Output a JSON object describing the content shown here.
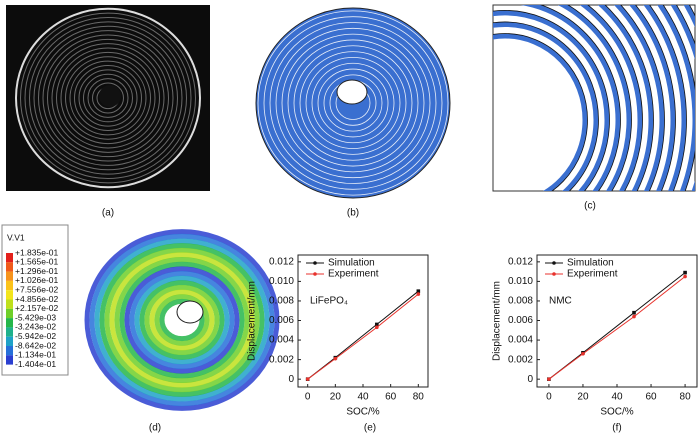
{
  "panels": [
    "(a)",
    "(b)",
    "(c)",
    "(d)",
    "(e)",
    "(f)"
  ],
  "colorbar": {
    "title": "V.V1",
    "labels": [
      "+1.835e-01",
      "+1.565e-01",
      "+1.296e-01",
      "+1.026e-01",
      "+7.556e-02",
      "+4.856e-02",
      "+2.157e-02",
      "-5.429e-03",
      "-3.243e-02",
      "-5.942e-02",
      "-8.642e-02",
      "-1.134e-01",
      "-1.404e-01"
    ]
  },
  "chart_data": [
    {
      "type": "line",
      "annotation": "LiFePO₄",
      "xlabel": "SOC/%",
      "ylabel": "Displacement/mm",
      "x": [
        0,
        20,
        50,
        80
      ],
      "series": [
        {
          "name": "Simulation",
          "color": "#111111",
          "values": [
            0,
            0.0022,
            0.0056,
            0.009
          ]
        },
        {
          "name": "Experiment",
          "color": "#e8322c",
          "values": [
            0,
            0.0021,
            0.0053,
            0.0087
          ]
        }
      ],
      "xlim": [
        -7,
        87
      ],
      "xticks": [
        0,
        20,
        40,
        60,
        80
      ],
      "ylim": [
        -0.0008,
        0.0127
      ],
      "yticks": [
        0,
        0.002,
        0.004,
        0.006,
        0.008,
        {
          "value": 0.01,
          "label": "0.010"
        },
        0.012
      ],
      "legend": "upper left"
    },
    {
      "type": "line",
      "annotation": "NMC",
      "xlabel": "SOC/%",
      "ylabel": "Displacement/mm",
      "x": [
        0,
        20,
        50,
        80
      ],
      "series": [
        {
          "name": "Simulation",
          "color": "#111111",
          "values": [
            0,
            0.0027,
            0.0068,
            0.0109
          ]
        },
        {
          "name": "Experiment",
          "color": "#e8322c",
          "values": [
            0,
            0.0026,
            0.0064,
            0.0105
          ]
        }
      ],
      "xlim": [
        -7,
        87
      ],
      "xticks": [
        0,
        20,
        40,
        60,
        80
      ],
      "ylim": [
        -0.0008,
        0.0127
      ],
      "yticks": [
        0,
        0.002,
        0.004,
        0.006,
        0.008,
        {
          "value": 0.01,
          "label": "0.010"
        },
        0.012
      ],
      "legend": "upper left"
    }
  ]
}
